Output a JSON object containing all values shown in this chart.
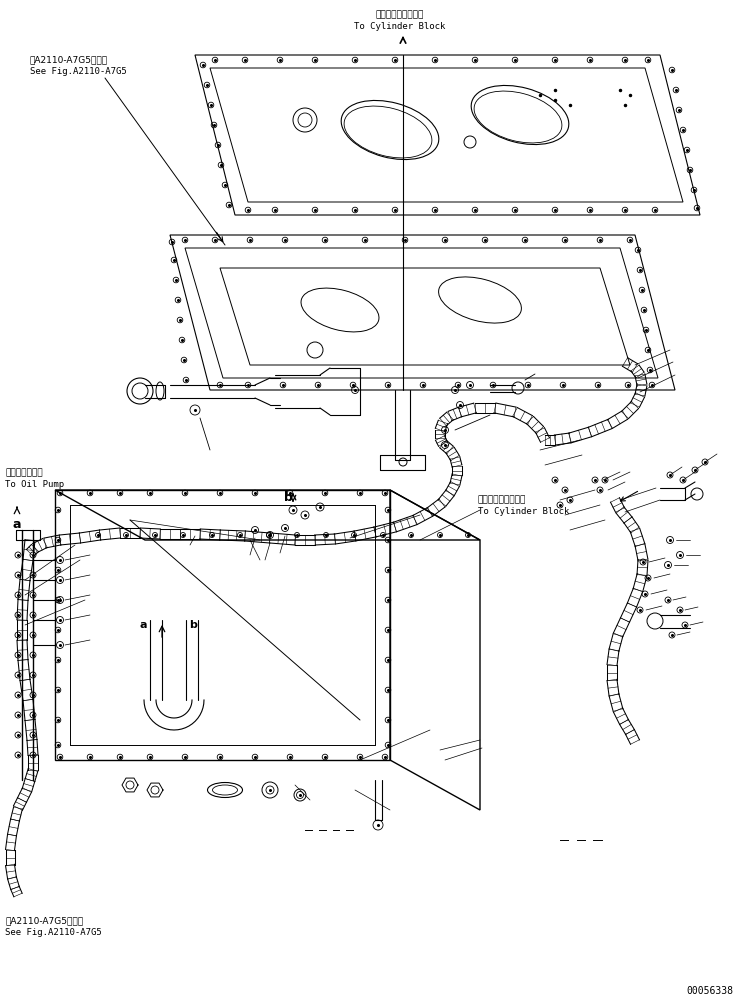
{
  "background_color": "#ffffff",
  "line_color": "#000000",
  "fig_width": 7.41,
  "fig_height": 10.06,
  "dpi": 100,
  "labels": {
    "top_jp": "シリンダブロックへ",
    "top_en": "To Cylinder Block",
    "top_left_jp": "第A2110-A7G5図参照",
    "top_left_en": "See Fig.A2110-A7G5",
    "left_jp": "オイルポンプへ",
    "left_en": "To Oil Pump",
    "right_jp": "シリンダブロックへ",
    "right_en": "To Cylinder Block",
    "bottom_left_jp": "第A2110-A7G5図参照",
    "bottom_left_en": "See Fig.A2110-A7G5",
    "label_a": "a",
    "label_b": "b",
    "part_number": "00056338"
  }
}
